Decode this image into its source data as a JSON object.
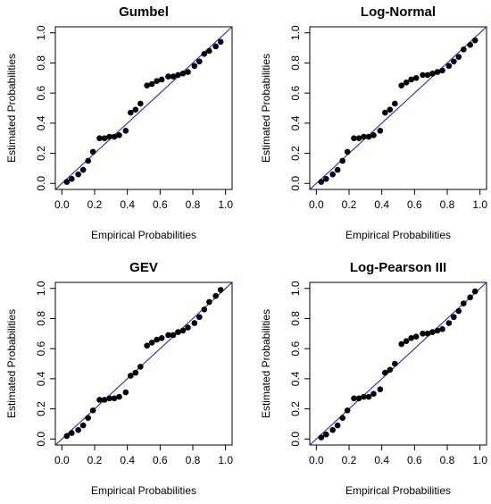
{
  "figure": {
    "xlabel": "Empirical Probabilities",
    "ylabel": "Estimated Probabilities",
    "ticks": [
      "0.0",
      "0.2",
      "0.4",
      "0.6",
      "0.8",
      "1.0"
    ],
    "point_color": "#000000",
    "reference_line_color": "#1f2bd6"
  },
  "chart_data": [
    {
      "type": "scatter",
      "title": "Gumbel",
      "xlabel": "Empirical Probabilities",
      "ylabel": "Estimated Probabilities",
      "xlim": [
        0,
        1
      ],
      "ylim": [
        0,
        1
      ],
      "reference_line": "y = x",
      "x": [
        0.03,
        0.06,
        0.1,
        0.13,
        0.16,
        0.19,
        0.23,
        0.26,
        0.29,
        0.32,
        0.35,
        0.39,
        0.42,
        0.45,
        0.48,
        0.52,
        0.55,
        0.58,
        0.61,
        0.65,
        0.68,
        0.71,
        0.74,
        0.77,
        0.81,
        0.84,
        0.87,
        0.9,
        0.94,
        0.97
      ],
      "y": [
        0.01,
        0.03,
        0.06,
        0.09,
        0.15,
        0.21,
        0.3,
        0.3,
        0.31,
        0.31,
        0.32,
        0.35,
        0.47,
        0.49,
        0.53,
        0.65,
        0.66,
        0.68,
        0.69,
        0.71,
        0.71,
        0.72,
        0.73,
        0.74,
        0.78,
        0.81,
        0.86,
        0.88,
        0.91,
        0.94
      ]
    },
    {
      "type": "scatter",
      "title": "Log-Normal",
      "xlabel": "Empirical Probabilities",
      "ylabel": "Estimated Probabilities",
      "xlim": [
        0,
        1
      ],
      "ylim": [
        0,
        1
      ],
      "reference_line": "y = x",
      "x": [
        0.03,
        0.06,
        0.1,
        0.13,
        0.16,
        0.19,
        0.23,
        0.26,
        0.29,
        0.32,
        0.35,
        0.39,
        0.42,
        0.45,
        0.48,
        0.52,
        0.55,
        0.58,
        0.61,
        0.65,
        0.68,
        0.71,
        0.74,
        0.77,
        0.81,
        0.84,
        0.87,
        0.9,
        0.94,
        0.97
      ],
      "y": [
        0.01,
        0.03,
        0.06,
        0.09,
        0.15,
        0.21,
        0.3,
        0.3,
        0.31,
        0.31,
        0.32,
        0.35,
        0.47,
        0.49,
        0.53,
        0.65,
        0.67,
        0.69,
        0.7,
        0.72,
        0.72,
        0.73,
        0.74,
        0.75,
        0.78,
        0.81,
        0.84,
        0.89,
        0.92,
        0.95
      ]
    },
    {
      "type": "scatter",
      "title": "GEV",
      "xlabel": "Empirical Probabilities",
      "ylabel": "Estimated Probabilities",
      "xlim": [
        0,
        1
      ],
      "ylim": [
        0,
        1
      ],
      "reference_line": "y = x",
      "x": [
        0.03,
        0.06,
        0.1,
        0.13,
        0.16,
        0.19,
        0.23,
        0.26,
        0.29,
        0.32,
        0.35,
        0.39,
        0.42,
        0.45,
        0.48,
        0.52,
        0.55,
        0.58,
        0.61,
        0.65,
        0.68,
        0.71,
        0.74,
        0.77,
        0.81,
        0.84,
        0.87,
        0.9,
        0.94,
        0.97
      ],
      "y": [
        0.02,
        0.04,
        0.06,
        0.09,
        0.14,
        0.19,
        0.26,
        0.26,
        0.27,
        0.27,
        0.28,
        0.31,
        0.42,
        0.44,
        0.48,
        0.62,
        0.64,
        0.66,
        0.67,
        0.69,
        0.69,
        0.71,
        0.72,
        0.74,
        0.77,
        0.81,
        0.86,
        0.91,
        0.95,
        0.99
      ]
    },
    {
      "type": "scatter",
      "title": "Log-Pearson III",
      "xlabel": "Empirical Probabilities",
      "ylabel": "Estimated Probabilities",
      "xlim": [
        0,
        1
      ],
      "ylim": [
        0,
        1
      ],
      "reference_line": "y = x",
      "x": [
        0.03,
        0.06,
        0.1,
        0.13,
        0.16,
        0.19,
        0.23,
        0.26,
        0.29,
        0.32,
        0.35,
        0.39,
        0.42,
        0.45,
        0.48,
        0.52,
        0.55,
        0.58,
        0.61,
        0.65,
        0.68,
        0.71,
        0.74,
        0.77,
        0.81,
        0.84,
        0.87,
        0.9,
        0.94,
        0.97
      ],
      "y": [
        0.01,
        0.03,
        0.06,
        0.09,
        0.14,
        0.19,
        0.27,
        0.27,
        0.28,
        0.28,
        0.3,
        0.33,
        0.44,
        0.46,
        0.5,
        0.63,
        0.65,
        0.67,
        0.68,
        0.7,
        0.7,
        0.71,
        0.72,
        0.73,
        0.77,
        0.81,
        0.85,
        0.9,
        0.94,
        0.98
      ]
    }
  ]
}
